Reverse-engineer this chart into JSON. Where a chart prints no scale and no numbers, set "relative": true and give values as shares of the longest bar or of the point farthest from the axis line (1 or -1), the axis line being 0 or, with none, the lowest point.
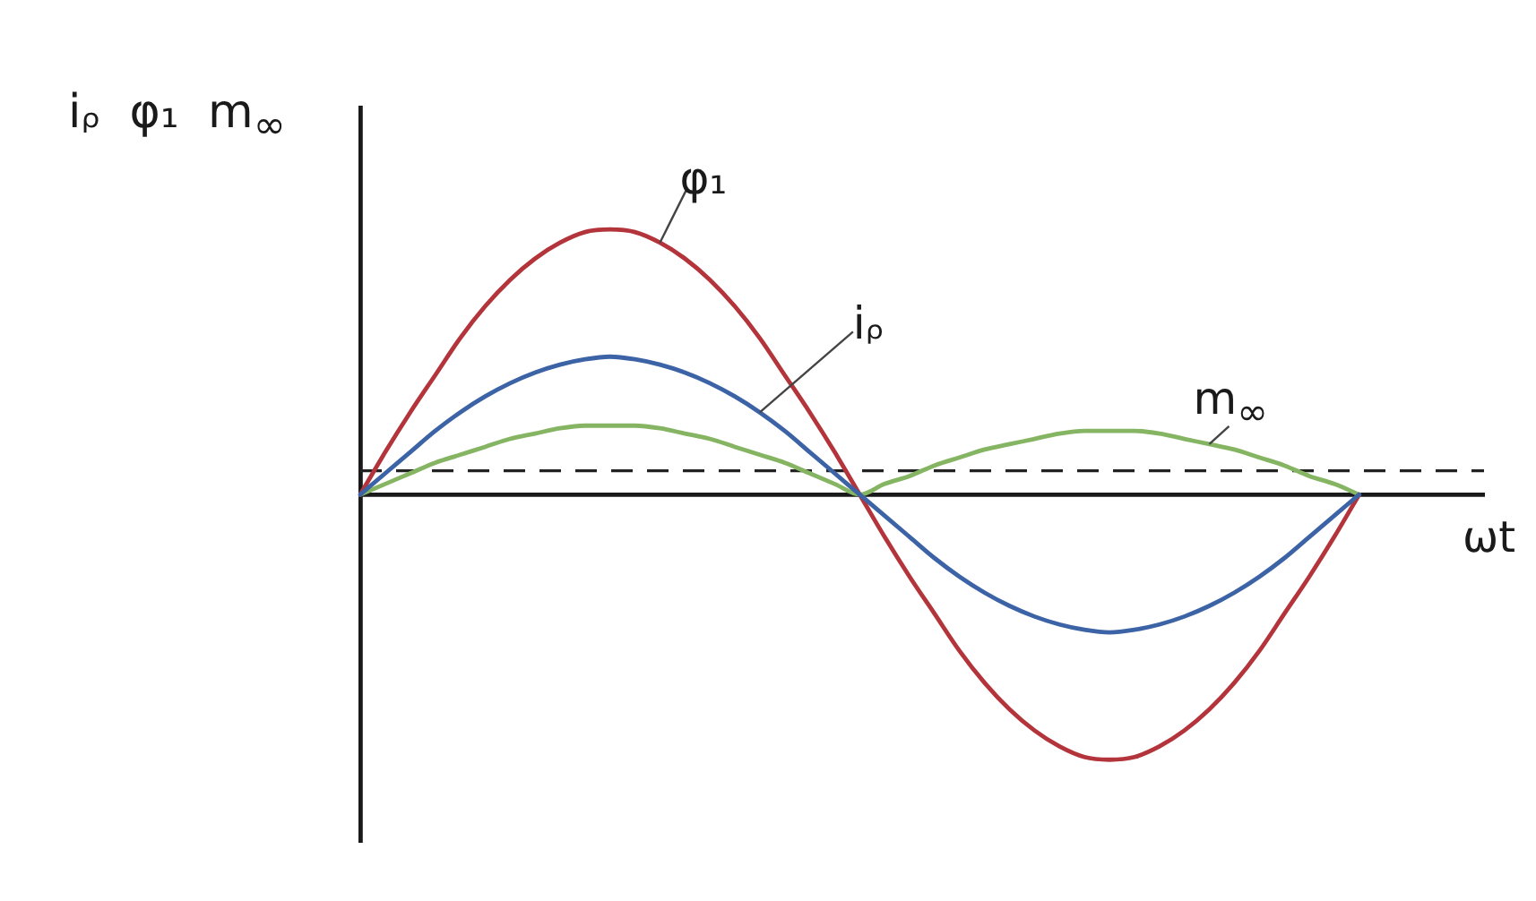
{
  "chart_data": {
    "type": "line",
    "relative": true,
    "xlabel": "ωt",
    "ylabel": "iᵨ φ₁ m$_{∞}$",
    "categories": [
      null,
      null,
      null,
      null,
      null,
      null,
      null,
      null,
      null,
      null,
      null,
      null,
      null,
      null,
      null,
      null,
      null,
      null,
      null,
      null,
      null,
      null,
      null,
      null,
      null,
      null,
      null,
      null,
      null,
      null,
      null,
      null,
      null,
      null,
      null,
      null,
      null,
      null,
      null,
      null,
      null,
      null,
      null,
      null,
      null,
      null
    ],
    "series": [
      {
        "name": "iᵨ",
        "color": "#3b63a6",
        "values": [
          0,
          0.08,
          0.16,
          0.24,
          0.31,
          0.37,
          0.42,
          0.46,
          0.49,
          0.51,
          0.52,
          0.51,
          0.49,
          0.46,
          0.42,
          0.37,
          0.31,
          0.24,
          0.16,
          0.08,
          0,
          -0.08,
          -0.16,
          -0.24,
          -0.31,
          -0.37,
          -0.42,
          -0.46,
          -0.49,
          -0.51,
          -0.52,
          -0.51,
          -0.49,
          -0.46,
          -0.42,
          -0.37,
          -0.31,
          -0.24,
          -0.16,
          -0.08,
          0,
          null,
          null,
          null,
          null,
          null
        ]
      },
      {
        "name": "φ₁",
        "color": "#b3343a",
        "values": [
          0,
          0.16,
          0.31,
          0.45,
          0.59,
          0.71,
          0.81,
          0.89,
          0.95,
          0.99,
          1,
          0.99,
          0.95,
          0.89,
          0.81,
          0.71,
          0.59,
          0.45,
          0.31,
          0.16,
          0,
          -0.16,
          -0.31,
          -0.45,
          -0.59,
          -0.71,
          -0.81,
          -0.89,
          -0.95,
          -0.99,
          -1,
          -0.99,
          -0.95,
          -0.89,
          -0.81,
          -0.71,
          -0.59,
          -0.45,
          -0.31,
          -0.16,
          0,
          null,
          null,
          null,
          null,
          null
        ]
      },
      {
        "name": "m$_{∞}$",
        "color": "#85b562",
        "values": [
          0,
          0.04,
          0.08,
          0.12,
          0.15,
          0.18,
          0.21,
          0.23,
          0.25,
          0.26,
          0.26,
          0.26,
          0.25,
          0.23,
          0.21,
          0.18,
          0.15,
          0.12,
          0.08,
          0.04,
          0,
          0.04,
          0.07,
          0.11,
          0.14,
          0.17,
          0.19,
          0.21,
          0.23,
          0.24,
          0.24,
          0.24,
          0.23,
          0.21,
          0.19,
          0.17,
          0.14,
          0.11,
          0.07,
          0.04,
          0,
          null,
          null,
          null,
          null,
          null
        ]
      }
    ],
    "ref_lines": [
      {
        "axis": "y",
        "value": 0.09,
        "color": "#222222",
        "line_style": "dashed"
      }
    ]
  }
}
